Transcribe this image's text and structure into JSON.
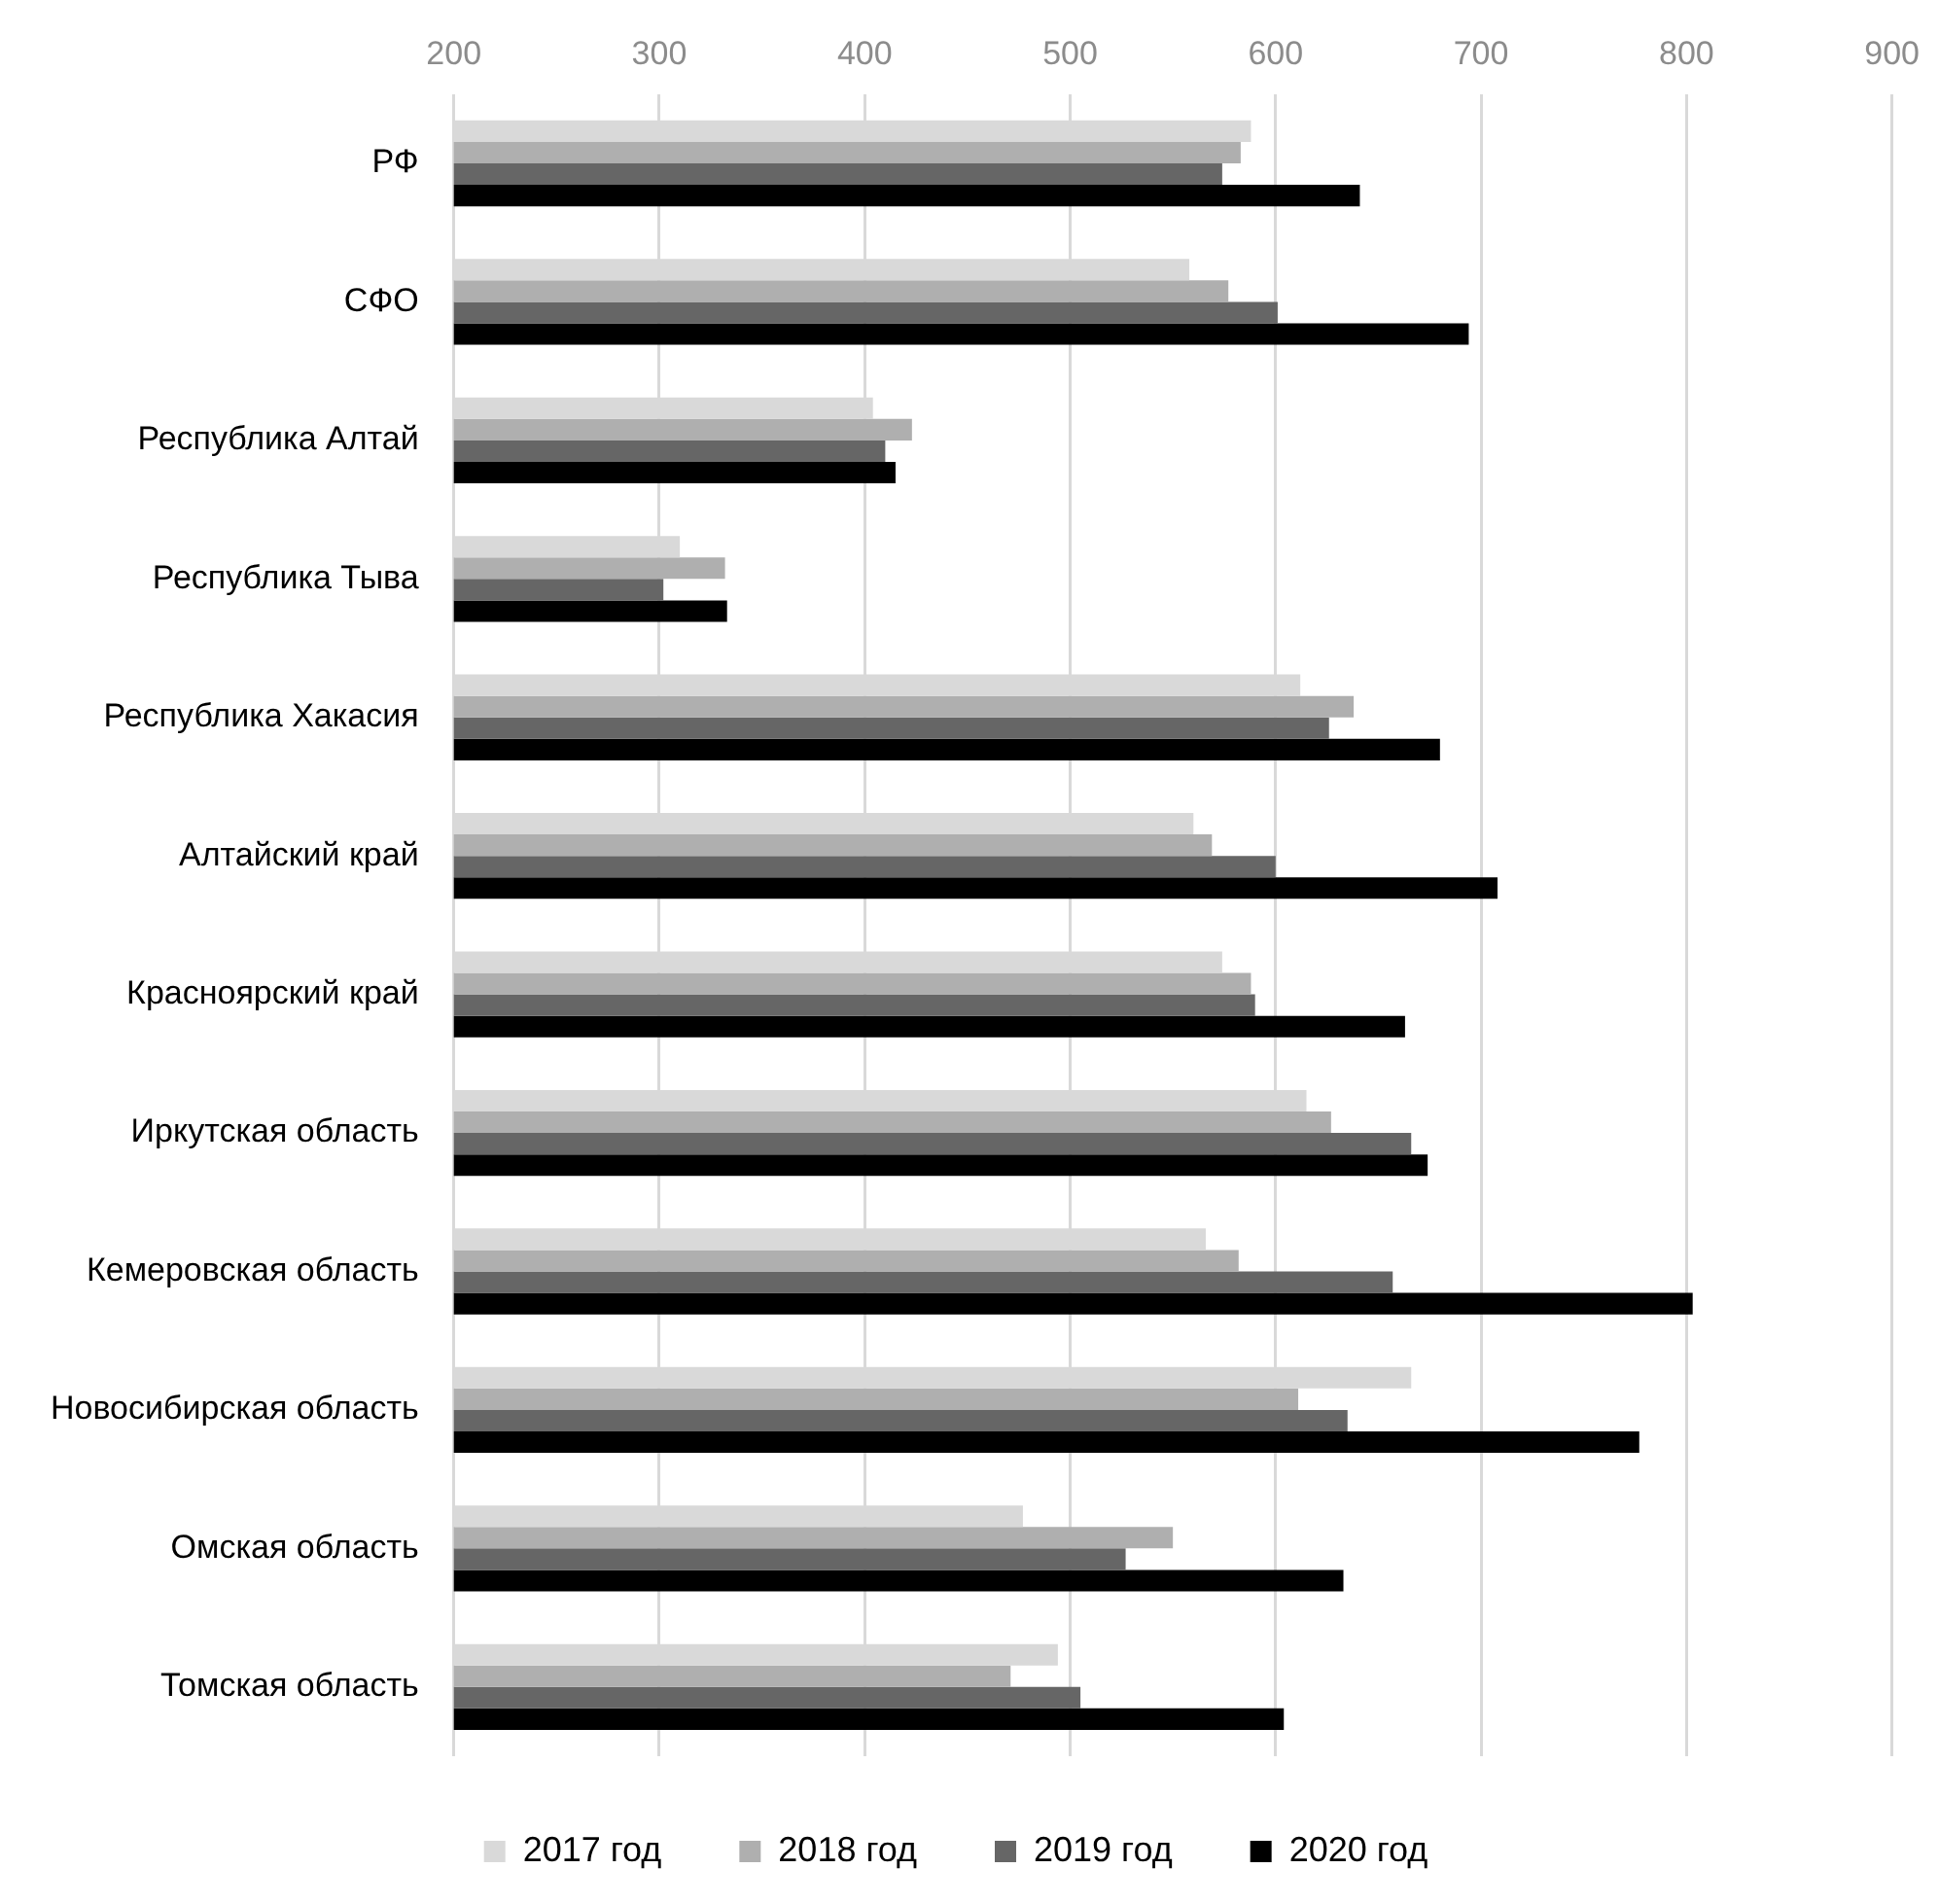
{
  "chart_data": {
    "type": "bar",
    "orientation": "horizontal",
    "categories": [
      "РФ",
      "СФО",
      "Республика Алтай",
      "Республика Тыва",
      "Республика Хакасия",
      "Алтайский край",
      "Красноярский край",
      "Иркутская область",
      "Кемеровская область",
      "Новосибирская область",
      "Омская область",
      "Томская область"
    ],
    "series": [
      {
        "name": "2017 год",
        "color": "#d9d9d9",
        "values": [
          588,
          558,
          404,
          310,
          612,
          560,
          574,
          615,
          566,
          666,
          477,
          494
        ]
      },
      {
        "name": "2018 год",
        "color": "#afafaf",
        "values": [
          583,
          577,
          423,
          332,
          638,
          569,
          588,
          627,
          582,
          611,
          550,
          471
        ]
      },
      {
        "name": "2019 год",
        "color": "#666666",
        "values": [
          574,
          601,
          410,
          302,
          626,
          600,
          590,
          666,
          657,
          635,
          527,
          505
        ]
      },
      {
        "name": "2020 год",
        "color": "#000000",
        "values": [
          641,
          694,
          415,
          333,
          680,
          708,
          663,
          674,
          803,
          777,
          633,
          604
        ]
      }
    ],
    "xlim": [
      200,
      900
    ],
    "xticks": [
      200,
      300,
      400,
      500,
      600,
      700,
      800,
      900
    ],
    "grid": "x",
    "legend": "bottom"
  }
}
